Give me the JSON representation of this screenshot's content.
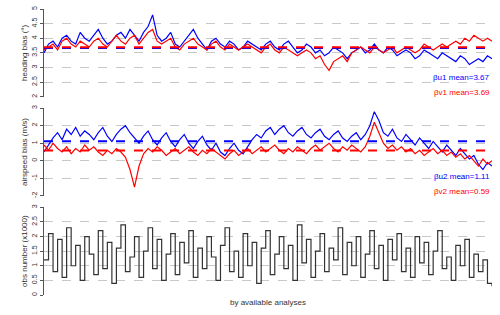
{
  "chart_data": [
    {
      "type": "line",
      "ylabel": "heading bias (°)",
      "ylim": [
        2,
        5
      ],
      "yticks": [
        2,
        2.5,
        3,
        3.5,
        4,
        4.5,
        5
      ],
      "grid": true,
      "tick_labels": "y",
      "series": [
        {
          "color": "#0000ff",
          "values": [
            3.5,
            3.8,
            3.9,
            3.7,
            4.0,
            4.1,
            3.9,
            3.8,
            4.2,
            4.0,
            3.9,
            4.1,
            4.3,
            4.0,
            3.8,
            3.9,
            4.1,
            4.2,
            4.0,
            4.3,
            4.1,
            3.9,
            4.2,
            4.4,
            4.8,
            4.1,
            3.9,
            4.0,
            4.2,
            3.8,
            3.7,
            3.9,
            4.1,
            4.3,
            4.0,
            3.8,
            3.6,
            3.9,
            4.0,
            3.8,
            3.7,
            3.9,
            3.8,
            3.6,
            3.7,
            3.9,
            3.8,
            3.7,
            3.6,
            3.8,
            3.9,
            3.7,
            3.6,
            3.8,
            3.9,
            3.7,
            3.5,
            3.6,
            3.8,
            3.7,
            3.5,
            3.6,
            3.4,
            3.5,
            3.7,
            3.6,
            3.5,
            3.3,
            3.5,
            3.6,
            3.7,
            3.5,
            3.6,
            3.8,
            3.6,
            3.5,
            3.7,
            3.6,
            3.4,
            3.5,
            3.6,
            3.5,
            3.3,
            3.4,
            3.6,
            3.5,
            3.4,
            3.3,
            3.5,
            3.4,
            3.3,
            3.2,
            3.4,
            3.3,
            3.1,
            3.2,
            3.3,
            3.2,
            3.4,
            3.3
          ]
        },
        {
          "color": "#ff0000",
          "values": [
            3.6,
            3.7,
            3.8,
            3.6,
            3.9,
            4.0,
            3.8,
            3.7,
            3.9,
            3.8,
            3.7,
            3.9,
            4.0,
            3.8,
            3.7,
            3.9,
            4.1,
            3.9,
            3.8,
            4.0,
            4.1,
            3.8,
            4.0,
            4.2,
            4.3,
            3.9,
            3.8,
            3.9,
            4.0,
            3.7,
            3.6,
            3.8,
            3.9,
            4.0,
            3.8,
            3.7,
            3.6,
            3.8,
            3.9,
            3.7,
            3.6,
            3.8,
            3.7,
            3.6,
            3.7,
            3.8,
            3.7,
            3.6,
            3.5,
            3.7,
            3.8,
            3.6,
            3.5,
            3.7,
            3.6,
            3.5,
            3.4,
            3.5,
            3.6,
            3.5,
            3.3,
            3.4,
            3.1,
            2.9,
            3.2,
            3.3,
            3.4,
            3.2,
            3.5,
            3.6,
            3.7,
            3.6,
            3.5,
            3.7,
            3.6,
            3.5,
            3.6,
            3.7,
            3.5,
            3.6,
            3.7,
            3.6,
            3.5,
            3.6,
            3.8,
            3.7,
            3.6,
            3.7,
            3.8,
            3.7,
            3.8,
            3.9,
            3.8,
            4.0,
            3.9,
            4.1,
            4.0,
            3.9,
            4.0,
            3.9
          ]
        }
      ],
      "mean_lines": [
        {
          "value": 3.67,
          "color": "#0000ff",
          "line_style": "dashed"
        },
        {
          "value": 3.69,
          "color": "#ff0000",
          "line_style": "dashed"
        }
      ],
      "annotations": [
        {
          "text": "βu1 mean=3.67",
          "color": "#0000ff"
        },
        {
          "text": "βv1 mean=3.69",
          "color": "#ff0000"
        }
      ]
    },
    {
      "type": "line",
      "ylabel": "airspeed bias (m/s)",
      "ylim": [
        -2,
        3
      ],
      "yticks": [
        -2,
        -1,
        0,
        1,
        2,
        3
      ],
      "grid": true,
      "tick_labels": "y",
      "series": [
        {
          "color": "#0000ff",
          "values": [
            0.5,
            0.9,
            1.3,
            1.6,
            1.2,
            1.8,
            1.5,
            1.9,
            1.4,
            1.7,
            1.5,
            1.2,
            1.6,
            1.9,
            1.4,
            1.1,
            1.5,
            1.8,
            2.0,
            1.6,
            1.3,
            1.0,
            1.4,
            1.7,
            1.2,
            0.9,
            1.3,
            1.6,
            1.1,
            0.8,
            1.2,
            1.5,
            1.0,
            0.7,
            1.1,
            1.4,
            0.9,
            0.6,
            1.0,
            0.5,
            0.3,
            0.7,
            1.0,
            0.6,
            0.4,
            0.8,
            1.2,
            1.5,
            1.3,
            1.7,
            1.9,
            1.5,
            1.8,
            2.0,
            1.6,
            1.4,
            1.7,
            1.9,
            1.5,
            1.3,
            1.6,
            1.8,
            1.4,
            1.2,
            1.5,
            1.7,
            1.3,
            1.1,
            1.4,
            1.6,
            1.2,
            1.5,
            2.0,
            2.8,
            2.3,
            1.6,
            1.4,
            1.8,
            1.3,
            1.1,
            1.5,
            1.2,
            0.9,
            1.3,
            1.0,
            0.7,
            1.1,
            0.8,
            0.5,
            0.9,
            0.6,
            0.3,
            0.7,
            0.4,
            0.1,
            0.3,
            -0.2,
            -0.5,
            -0.1,
            -0.3
          ]
        },
        {
          "color": "#ff0000",
          "values": [
            0.9,
            0.6,
            1.0,
            0.7,
            0.5,
            0.8,
            0.4,
            0.7,
            0.5,
            0.9,
            0.6,
            0.8,
            0.5,
            0.3,
            0.6,
            0.4,
            0.7,
            0.5,
            0.2,
            -0.5,
            -1.5,
            -0.3,
            0.4,
            0.7,
            0.5,
            0.8,
            0.6,
            0.3,
            0.5,
            0.7,
            0.4,
            0.6,
            0.8,
            0.5,
            0.3,
            0.6,
            0.4,
            0.7,
            0.5,
            0.3,
            0.1,
            0.4,
            0.6,
            0.3,
            0.5,
            0.7,
            0.4,
            0.6,
            0.8,
            0.5,
            0.7,
            0.9,
            0.6,
            0.4,
            0.7,
            0.5,
            0.8,
            0.6,
            0.4,
            0.7,
            0.9,
            0.6,
            0.8,
            1.0,
            0.7,
            0.5,
            0.8,
            0.6,
            0.9,
            0.7,
            0.5,
            0.8,
            1.4,
            2.2,
            1.6,
            1.0,
            0.7,
            0.9,
            0.6,
            0.8,
            0.5,
            0.7,
            0.4,
            0.6,
            0.3,
            0.5,
            0.7,
            0.4,
            0.6,
            0.3,
            0.5,
            0.2,
            0.4,
            0.1,
            0.3,
            0.0,
            -0.3,
            0.1,
            -0.2,
            0.0
          ]
        }
      ],
      "mean_lines": [
        {
          "value": 1.11,
          "color": "#0000ff",
          "line_style": "dashed"
        },
        {
          "value": 0.59,
          "color": "#ff0000",
          "line_style": "dashed"
        }
      ],
      "annotations": [
        {
          "text": "βu2 mean=1.11",
          "color": "#0000ff"
        },
        {
          "text": "βv2 mean=0.59",
          "color": "#ff0000"
        }
      ]
    },
    {
      "type": "line",
      "ylabel": "obs number (x1000)",
      "xlabel": "by available analyses",
      "ylim": [
        0,
        3
      ],
      "yticks": [
        0,
        0.5,
        1,
        1.5,
        2,
        2.5,
        3
      ],
      "grid": true,
      "tick_labels": "y",
      "series": [
        {
          "color": "#333333",
          "line_style": "step",
          "values": [
            1.2,
            2.1,
            0.8,
            1.9,
            0.6,
            2.3,
            1.0,
            1.7,
            0.5,
            2.0,
            1.4,
            0.7,
            2.2,
            0.9,
            1.8,
            0.4,
            1.6,
            2.4,
            0.8,
            1.3,
            2.0,
            0.6,
            1.5,
            2.3,
            0.9,
            1.9,
            0.5,
            1.4,
            2.1,
            0.7,
            1.8,
            1.1,
            2.2,
            0.6,
            1.6,
            0.9,
            2.0,
            1.3,
            0.5,
            1.7,
            2.3,
            0.8,
            1.5,
            0.6,
            2.1,
            1.0,
            1.8,
            0.4,
            1.6,
            2.2,
            0.7,
            1.4,
            2.0,
            0.9,
            1.7,
            0.5,
            2.4,
            1.1,
            1.9,
            0.6,
            1.5,
            2.1,
            0.8,
            1.6,
            1.2,
            2.3,
            0.7,
            1.8,
            1.0,
            2.0,
            0.6,
            1.4,
            2.2,
            0.9,
            1.7,
            0.5,
            1.9,
            1.2,
            2.1,
            0.8,
            1.6,
            0.6,
            2.0,
            1.1,
            1.8,
            0.7,
            1.5,
            2.2,
            0.9,
            1.3,
            0.5,
            1.7,
            1.0,
            1.9,
            0.6,
            1.4,
            0.8,
            1.2,
            0.4,
            0.3
          ]
        }
      ]
    }
  ]
}
